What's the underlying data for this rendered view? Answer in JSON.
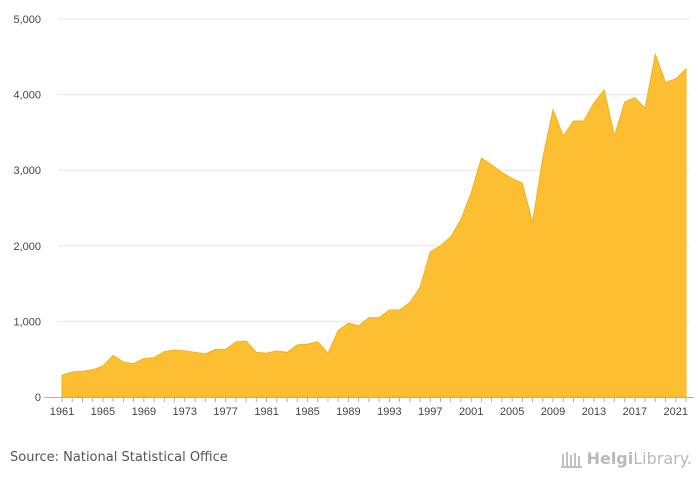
{
  "chart_data": {
    "type": "area",
    "x": [
      1961,
      1962,
      1963,
      1964,
      1965,
      1966,
      1967,
      1968,
      1969,
      1970,
      1971,
      1972,
      1973,
      1974,
      1975,
      1976,
      1977,
      1978,
      1979,
      1980,
      1981,
      1982,
      1983,
      1984,
      1985,
      1986,
      1987,
      1988,
      1989,
      1990,
      1991,
      1992,
      1993,
      1994,
      1995,
      1996,
      1997,
      1998,
      1999,
      2000,
      2001,
      2002,
      2003,
      2004,
      2005,
      2006,
      2007,
      2008,
      2009,
      2010,
      2011,
      2012,
      2013,
      2014,
      2015,
      2016,
      2017,
      2018,
      2019,
      2020,
      2021,
      2022
    ],
    "values": [
      290,
      330,
      340,
      360,
      410,
      550,
      460,
      440,
      510,
      520,
      600,
      620,
      610,
      590,
      570,
      630,
      630,
      730,
      740,
      590,
      580,
      610,
      590,
      690,
      700,
      730,
      580,
      880,
      980,
      940,
      1050,
      1050,
      1150,
      1150,
      1250,
      1450,
      1920,
      2000,
      2120,
      2350,
      2700,
      3160,
      3070,
      2970,
      2890,
      2830,
      2310,
      3160,
      3800,
      3450,
      3650,
      3650,
      3890,
      4060,
      3450,
      3900,
      3960,
      3820,
      4530,
      4160,
      4210,
      4340
    ],
    "x_tick_labels": [
      "1961",
      "1965",
      "1969",
      "1973",
      "1977",
      "1981",
      "1985",
      "1989",
      "1993",
      "1997",
      "2001",
      "2005",
      "2009",
      "2013",
      "2017",
      "2021"
    ],
    "y_tick_labels": [
      "0",
      "1,000",
      "2,000",
      "3,000",
      "4,000",
      "5,000"
    ],
    "ylim": [
      0,
      5000
    ],
    "grid": true,
    "colors": {
      "fill": "#FBBF31",
      "line": "#F2B21E"
    }
  },
  "footer": {
    "source": "Source: National Statistical Office",
    "brand_bold": "Helgi",
    "brand_rest": "Library."
  }
}
